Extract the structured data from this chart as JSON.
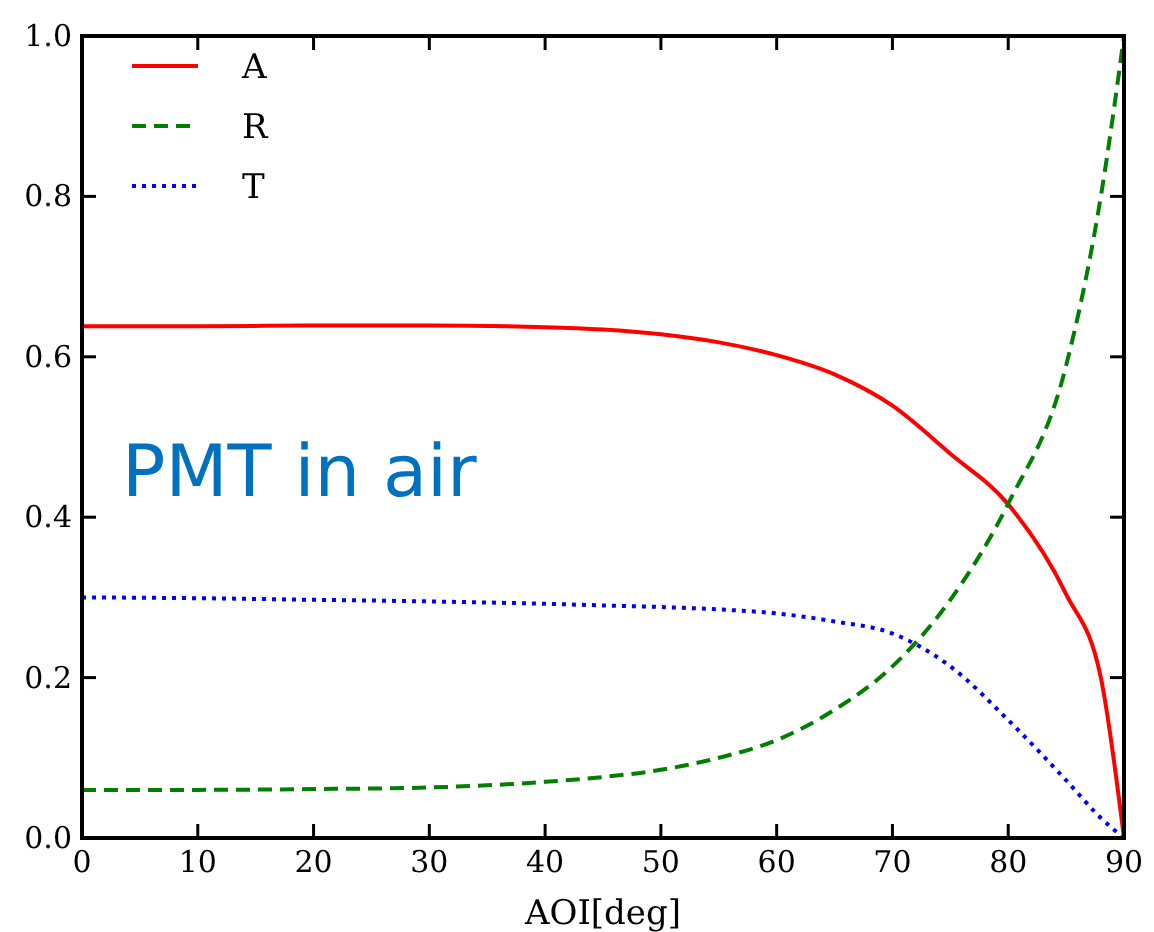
{
  "chart_data": {
    "type": "line",
    "xlabel": "AOI[deg]",
    "xlim": [
      0,
      90
    ],
    "xticks": [
      0,
      10,
      20,
      30,
      40,
      50,
      60,
      70,
      80,
      90
    ],
    "ylim": [
      0,
      1
    ],
    "yticks": [
      {
        "value": 0,
        "label": "0.0"
      },
      {
        "value": 0.2,
        "label": "0.2"
      },
      {
        "value": 0.4,
        "label": "0.4"
      },
      {
        "value": 0.6,
        "label": "0.6"
      },
      {
        "value": 0.8,
        "label": "0.8"
      },
      {
        "value": 1,
        "label": "1.0"
      }
    ],
    "legend": "top left",
    "grid": false,
    "marker": "none",
    "x": [
      0,
      10,
      20,
      30,
      40,
      45,
      50,
      55,
      60,
      65,
      70,
      75,
      80,
      85,
      88,
      90
    ],
    "series": [
      {
        "name": "A",
        "color": "#ff0000",
        "line_style": "solid",
        "values": [
          0.638,
          0.638,
          0.639,
          0.639,
          0.637,
          0.634,
          0.628,
          0.618,
          0.602,
          0.578,
          0.539,
          0.479,
          0.416,
          0.304,
          0.2,
          0
        ]
      },
      {
        "name": "R",
        "color": "#007f00",
        "line_style": "dashed",
        "values": [
          0.06,
          0.06,
          0.061,
          0.063,
          0.07,
          0.076,
          0.085,
          0.1,
          0.122,
          0.16,
          0.214,
          0.297,
          0.417,
          0.589,
          0.8,
          1
        ]
      },
      {
        "name": "T",
        "color": "#0000ff",
        "line_style": "dotted",
        "values": [
          0.3,
          0.299,
          0.297,
          0.295,
          0.292,
          0.29,
          0.288,
          0.285,
          0.28,
          0.27,
          0.255,
          0.214,
          0.147,
          0.072,
          0.025,
          0
        ]
      }
    ],
    "annotations": [
      "PMT in air"
    ]
  }
}
